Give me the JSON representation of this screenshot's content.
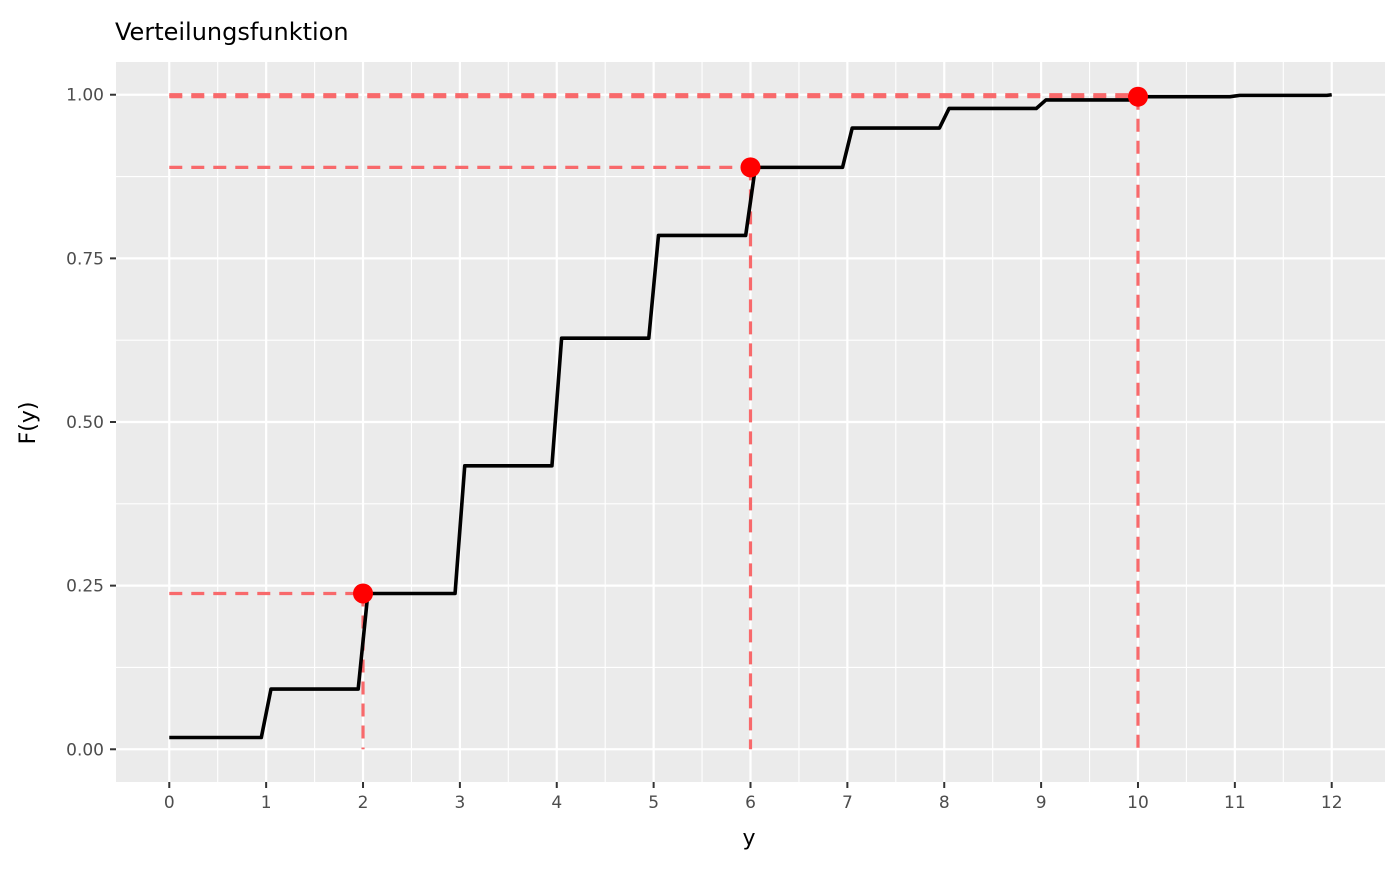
{
  "chart_data": {
    "type": "line",
    "title": "Verteilungsfunktion",
    "xlabel": "y",
    "ylabel": "F(y)",
    "xlim": [
      -0.55,
      12.55
    ],
    "ylim": [
      -0.05,
      1.05
    ],
    "x_ticks": [
      0,
      1,
      2,
      3,
      4,
      5,
      6,
      7,
      8,
      9,
      10,
      11,
      12
    ],
    "x_tick_labels": [
      "0",
      "1",
      "2",
      "3",
      "4",
      "5",
      "6",
      "7",
      "8",
      "9",
      "10",
      "11",
      "12"
    ],
    "y_ticks": [
      0,
      0.25,
      0.5,
      0.75,
      1
    ],
    "y_tick_labels": [
      "0.00",
      "0.25",
      "0.50",
      "0.75",
      "1.00"
    ],
    "grid": true,
    "series": [
      {
        "style": "step-line",
        "color": "#000000",
        "x": [
          0,
          0.95,
          1.05,
          1.95,
          2.05,
          2.95,
          3.05,
          3.95,
          4.05,
          4.95,
          5.05,
          5.95,
          6.05,
          6.95,
          7.05,
          7.95,
          8.05,
          8.95,
          9.05,
          9.95,
          10.05,
          10.95,
          11.05,
          11.95,
          12
        ],
        "y": [
          0.018,
          0.018,
          0.092,
          0.092,
          0.238,
          0.238,
          0.433,
          0.433,
          0.628,
          0.628,
          0.785,
          0.785,
          0.889,
          0.889,
          0.949,
          0.949,
          0.979,
          0.979,
          0.992,
          0.992,
          0.997,
          0.997,
          0.999,
          0.999,
          1.0
        ]
      }
    ],
    "highlight_points": [
      {
        "x": 2,
        "y": 0.238
      },
      {
        "x": 6,
        "y": 0.889
      },
      {
        "x": 10,
        "y": 0.997
      }
    ],
    "highlight_color": "#ff0000",
    "guide_color": "#f8696b",
    "extra_guide_y": 1.0,
    "panel_background": "#ebebeb",
    "grid_color": "#ffffff"
  }
}
